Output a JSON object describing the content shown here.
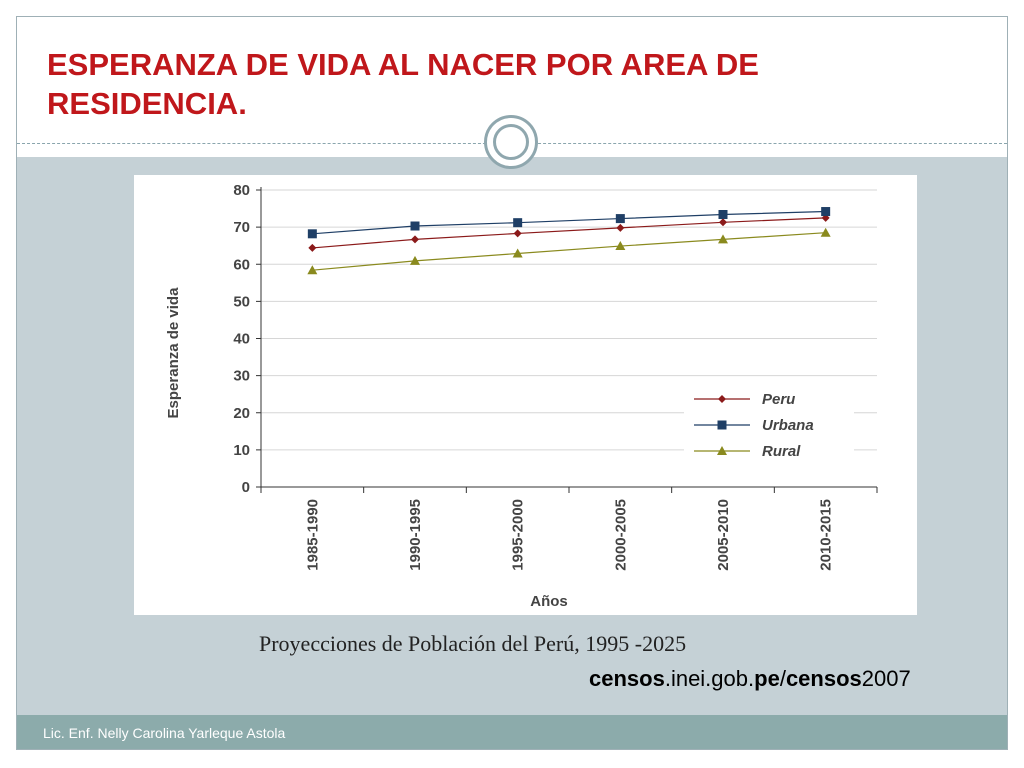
{
  "slide": {
    "title": "ESPERANZA DE VIDA AL NACER POR AREA DE RESIDENCIA.",
    "caption": "Proyecciones de Población del Perú, 1995 -2025",
    "source_url_parts": [
      "censos",
      ".inei.gob.",
      "pe",
      "/",
      "censos",
      "2007"
    ],
    "footer": "Lic. Enf. Nelly Carolina Yarleque Astola"
  },
  "chart_data": {
    "type": "line",
    "title": "",
    "xlabel": "Años",
    "ylabel": "Esperanza de vida",
    "categories": [
      "1985-1990",
      "1990-1995",
      "1995-2000",
      "2000-2005",
      "2005-2010",
      "2010-2015"
    ],
    "ylim": [
      0,
      80
    ],
    "yticks": [
      0,
      10,
      20,
      30,
      40,
      50,
      60,
      70,
      80
    ],
    "grid": true,
    "legend_position": "lower-right",
    "series": [
      {
        "name": "Peru",
        "values": [
          64.4,
          66.7,
          68.3,
          69.8,
          71.3,
          72.5
        ],
        "color": "#8b1a1a",
        "marker": "diamond"
      },
      {
        "name": "Urbana",
        "values": [
          68.2,
          70.3,
          71.2,
          72.3,
          73.4,
          74.2
        ],
        "color": "#1f3f66",
        "marker": "square"
      },
      {
        "name": "Rural",
        "values": [
          58.4,
          60.9,
          62.9,
          64.9,
          66.7,
          68.5
        ],
        "color": "#8a8a1e",
        "marker": "triangle"
      }
    ]
  }
}
